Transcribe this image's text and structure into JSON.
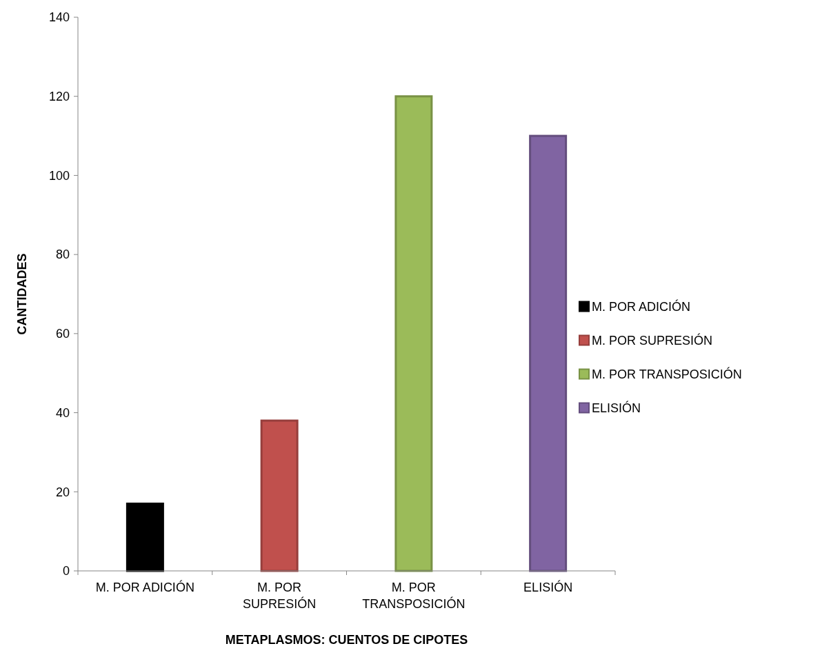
{
  "chart_data": {
    "type": "bar",
    "xlabel": "METAPLASMOS: CUENTOS DE CIPOTES",
    "ylabel": "CANTIDADES",
    "categories": [
      "M. POR ADICIÓN",
      "M. POR SUPRESIÓN",
      "M. POR TRANSPOSICIÓN",
      "ELISIÓN"
    ],
    "series": [
      {
        "name": "M. POR ADICIÓN",
        "color": "#000000",
        "values": [
          17,
          null,
          null,
          null
        ]
      },
      {
        "name": "M. POR SUPRESIÓN",
        "color": "#c0504d",
        "values": [
          null,
          38,
          null,
          null
        ]
      },
      {
        "name": "M. POR TRANSPOSICIÓN",
        "color": "#9bbb59",
        "values": [
          null,
          null,
          120,
          null
        ]
      },
      {
        "name": "ELISIÓN",
        "color": "#8064a2",
        "values": [
          null,
          null,
          null,
          110
        ]
      }
    ],
    "ylim": [
      0,
      140
    ],
    "yticks": [
      0,
      20,
      40,
      60,
      80,
      100,
      120,
      140
    ],
    "grid": false,
    "legend": "right"
  }
}
